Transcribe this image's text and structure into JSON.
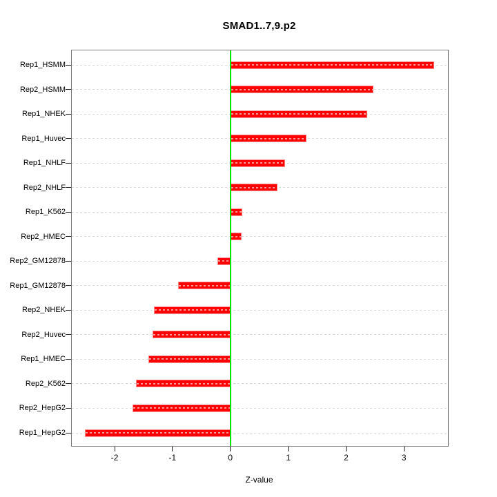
{
  "chart_data": {
    "type": "bar",
    "orientation": "horizontal",
    "title": "SMAD1..7,9.p2",
    "xlabel": "Z-value",
    "categories": [
      "Rep1_HSMM",
      "Rep2_HSMM",
      "Rep1_NHEK",
      "Rep1_Huvec",
      "Rep1_NHLF",
      "Rep2_NHLF",
      "Rep1_K562",
      "Rep2_HMEC",
      "Rep2_GM12878",
      "Rep1_GM12878",
      "Rep2_NHEK",
      "Rep2_Huvec",
      "Rep1_HMEC",
      "Rep2_K562",
      "Rep2_HepG2",
      "Rep1_HepG2"
    ],
    "values": [
      3.52,
      2.47,
      2.36,
      1.31,
      0.95,
      0.82,
      0.2,
      0.19,
      -0.22,
      -0.9,
      -1.32,
      -1.35,
      -1.42,
      -1.63,
      -1.69,
      -2.51
    ],
    "x_ticks": [
      -2,
      -1,
      0,
      1,
      2,
      3
    ],
    "xlim": [
      -2.74,
      3.76
    ],
    "zero_line_x": 0,
    "grid": "dashed horizontal line per category, full plot width",
    "legend": "none",
    "colors": {
      "bar_fill": "#ff0000",
      "bar_edge": "#ff8a8a",
      "zero_line": "#00e400",
      "gridline": "#d9d9d9",
      "frame": "#787878",
      "text": "#000000",
      "background": "#ffffff"
    }
  }
}
